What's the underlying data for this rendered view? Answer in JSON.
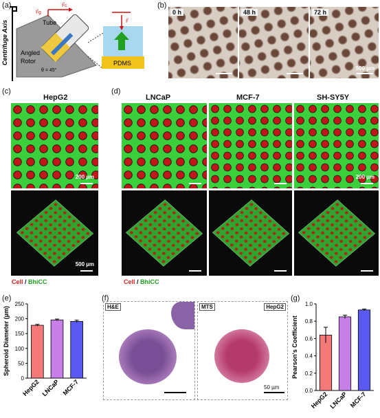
{
  "panels": {
    "a": {
      "label": "(a)",
      "axis_label": "Centrifuge Axis",
      "tube_label": "Tube",
      "rotor_label": "Angled\nRotor",
      "angle_label": "θ = 45°",
      "pdms_label": "PDMS",
      "force_f_label": "F",
      "force_fc_label": "Fc",
      "force_fg_label": "Fg"
    },
    "b": {
      "label": "(b)",
      "times": [
        "0 h",
        "48 h",
        "72 h"
      ],
      "scale": "500 µm"
    },
    "c": {
      "label": "(c)",
      "title": "HepG2",
      "scale_top": "200 µm",
      "scale_bottom": "500 µm"
    },
    "d": {
      "label": "(d)",
      "titles": [
        "LNCaP",
        "MCF-7",
        "SH-SY5Y"
      ],
      "scale_top": "200 µm"
    },
    "legend": {
      "cell": "Cell",
      "sep": " / ",
      "bhicc": "BhiCC"
    },
    "e": {
      "label": "(e)"
    },
    "f": {
      "label": "(f)",
      "he": "H&E",
      "mts": "MTS",
      "cell": "HepG2",
      "scale": "50 µm"
    },
    "g": {
      "label": "(g)"
    }
  },
  "colors": {
    "cell": "#d42020",
    "bhicc": "#1f9e1f",
    "bar_hepg2": "#f47a7a",
    "bar_lncap": "#c77ee6",
    "bar_mcf7": "#5a5af0"
  },
  "chart_data": [
    {
      "type": "bar",
      "panel": "e",
      "categories": [
        "HepG2",
        "LNCaP",
        "MCF-7"
      ],
      "values": [
        178,
        196,
        191
      ],
      "errors": [
        3,
        3,
        4
      ],
      "ylabel": "Spheroid Diameter (µm)",
      "ylim": [
        0,
        250
      ],
      "yticks": [
        0,
        50,
        100,
        150,
        200,
        250
      ]
    },
    {
      "type": "bar",
      "panel": "g",
      "categories": [
        "HepG2",
        "LNCaP",
        "MCF-7"
      ],
      "values": [
        0.64,
        0.85,
        0.93
      ],
      "errors": [
        0.09,
        0.02,
        0.01
      ],
      "ylabel": "Pearson's Coefficient",
      "ylim": [
        0,
        1.0
      ],
      "yticks": [
        0,
        0.2,
        0.4,
        0.6,
        0.8,
        1.0
      ],
      "ytick_labels": [
        "0.0",
        "0.2",
        "0.4",
        "0.6",
        "0.8",
        "1.0"
      ]
    }
  ]
}
